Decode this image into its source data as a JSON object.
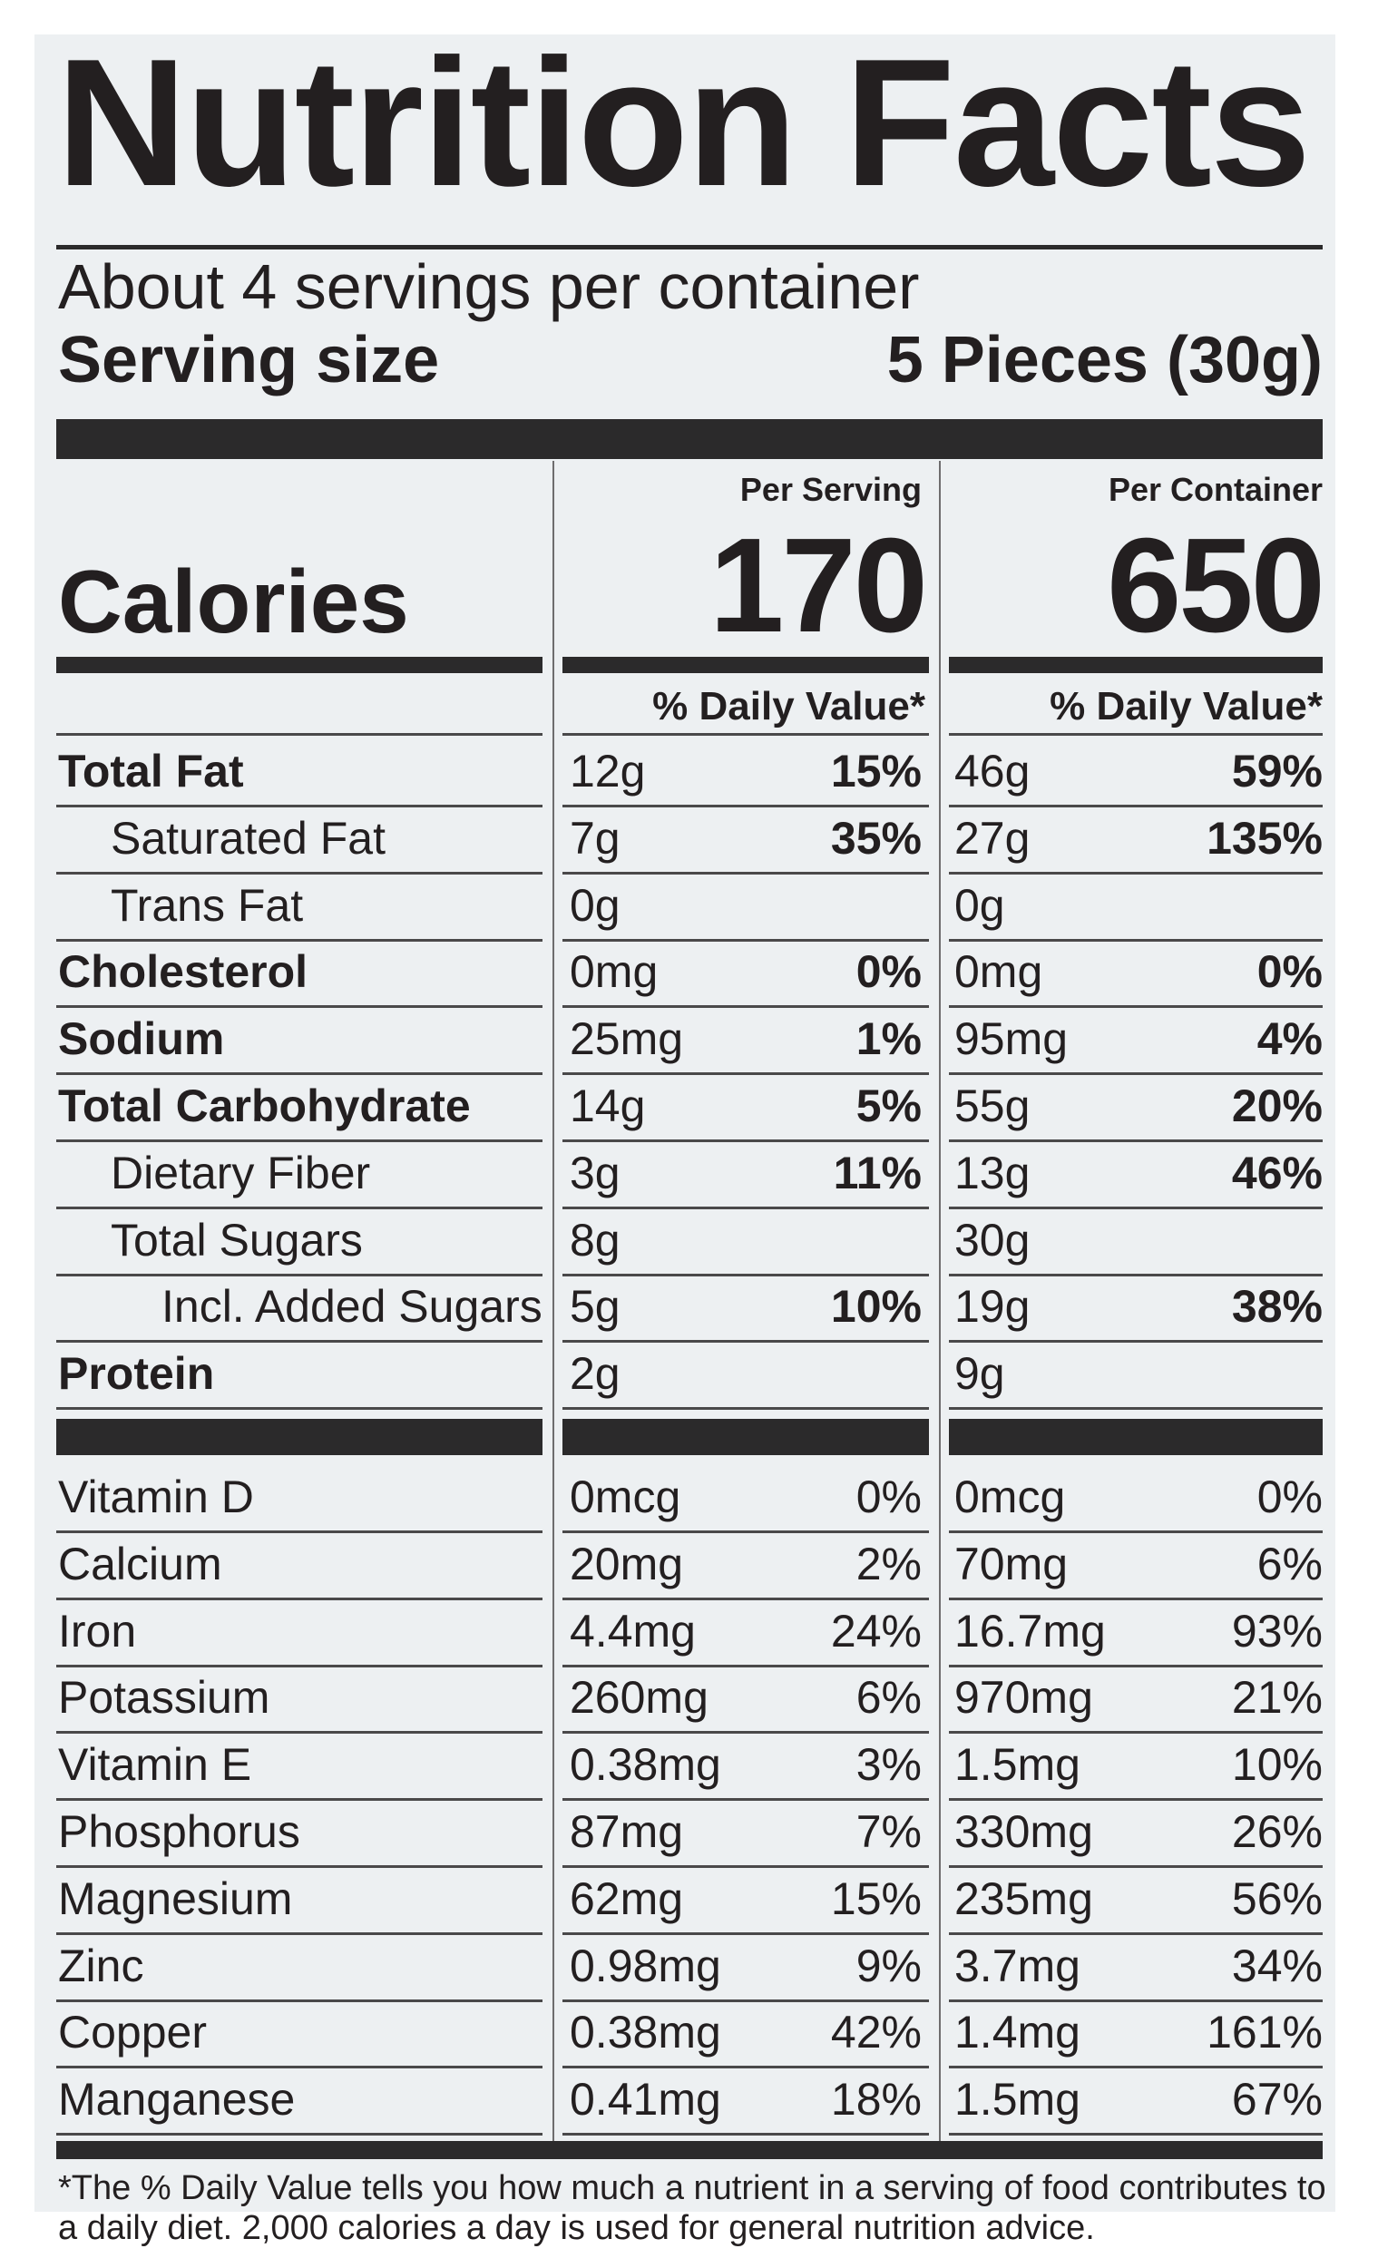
{
  "title": "Nutrition Facts",
  "servings_per_container": "About 4 servings per container",
  "serving_size_label": "Serving size",
  "serving_size_value": "5 Pieces (30g)",
  "per_serving_label": "Per Serving",
  "per_container_label": "Per Container",
  "calories_label": "Calories",
  "calories_per_serving": "170",
  "calories_per_container": "650",
  "dv_header": "% Daily Value*",
  "nutrients": [
    {
      "name": "Total Fat",
      "serving_amount": "12g",
      "serving_dv": "15%",
      "container_amount": "46g",
      "container_dv": "59%"
    },
    {
      "name": "Saturated Fat",
      "serving_amount": "7g",
      "serving_dv": "35%",
      "container_amount": "27g",
      "container_dv": "135%"
    },
    {
      "name": "Trans Fat",
      "serving_amount": "0g",
      "serving_dv": "",
      "container_amount": "0g",
      "container_dv": ""
    },
    {
      "name": "Cholesterol",
      "serving_amount": "0mg",
      "serving_dv": "0%",
      "container_amount": "0mg",
      "container_dv": "0%"
    },
    {
      "name": "Sodium",
      "serving_amount": "25mg",
      "serving_dv": "1%",
      "container_amount": "95mg",
      "container_dv": "4%"
    },
    {
      "name": "Total Carbohydrate",
      "serving_amount": "14g",
      "serving_dv": "5%",
      "container_amount": "55g",
      "container_dv": "20%"
    },
    {
      "name": "Dietary Fiber",
      "serving_amount": "3g",
      "serving_dv": "11%",
      "container_amount": "13g",
      "container_dv": "46%"
    },
    {
      "name": "Total Sugars",
      "serving_amount": "8g",
      "serving_dv": "",
      "container_amount": "30g",
      "container_dv": ""
    },
    {
      "name": "Incl. Added Sugars",
      "serving_amount": "5g",
      "serving_dv": "10%",
      "container_amount": "19g",
      "container_dv": "38%"
    },
    {
      "name": "Protein",
      "serving_amount": "2g",
      "serving_dv": "",
      "container_amount": "9g",
      "container_dv": ""
    }
  ],
  "vitamins": [
    {
      "name": "Vitamin D",
      "serving_amount": "0mcg",
      "serving_dv": "0%",
      "container_amount": "0mcg",
      "container_dv": "0%"
    },
    {
      "name": "Calcium",
      "serving_amount": "20mg",
      "serving_dv": "2%",
      "container_amount": "70mg",
      "container_dv": "6%"
    },
    {
      "name": "Iron",
      "serving_amount": "4.4mg",
      "serving_dv": "24%",
      "container_amount": "16.7mg",
      "container_dv": "93%"
    },
    {
      "name": "Potassium",
      "serving_amount": "260mg",
      "serving_dv": "6%",
      "container_amount": "970mg",
      "container_dv": "21%"
    },
    {
      "name": "Vitamin E",
      "serving_amount": "0.38mg",
      "serving_dv": "3%",
      "container_amount": "1.5mg",
      "container_dv": "10%"
    },
    {
      "name": "Phosphorus",
      "serving_amount": "87mg",
      "serving_dv": "7%",
      "container_amount": "330mg",
      "container_dv": "26%"
    },
    {
      "name": "Magnesium",
      "serving_amount": "62mg",
      "serving_dv": "15%",
      "container_amount": "235mg",
      "container_dv": "56%"
    },
    {
      "name": "Zinc",
      "serving_amount": "0.98mg",
      "serving_dv": "9%",
      "container_amount": "3.7mg",
      "container_dv": "34%"
    },
    {
      "name": "Copper",
      "serving_amount": "0.38mg",
      "serving_dv": "42%",
      "container_amount": "1.4mg",
      "container_dv": "161%"
    },
    {
      "name": "Manganese",
      "serving_amount": "0.41mg",
      "serving_dv": "18%",
      "container_amount": "1.5mg",
      "container_dv": "67%"
    }
  ],
  "footnote_line1": "*The % Daily Value tells you how much a nutrient in a serving of food contributes to",
  "footnote_line2": "a daily diet. 2,000 calories a day is used for general nutrition advice.",
  "colors": {
    "ink": "#231f20",
    "label_background": "#edf0f2",
    "rule": "#2b2a2b"
  }
}
